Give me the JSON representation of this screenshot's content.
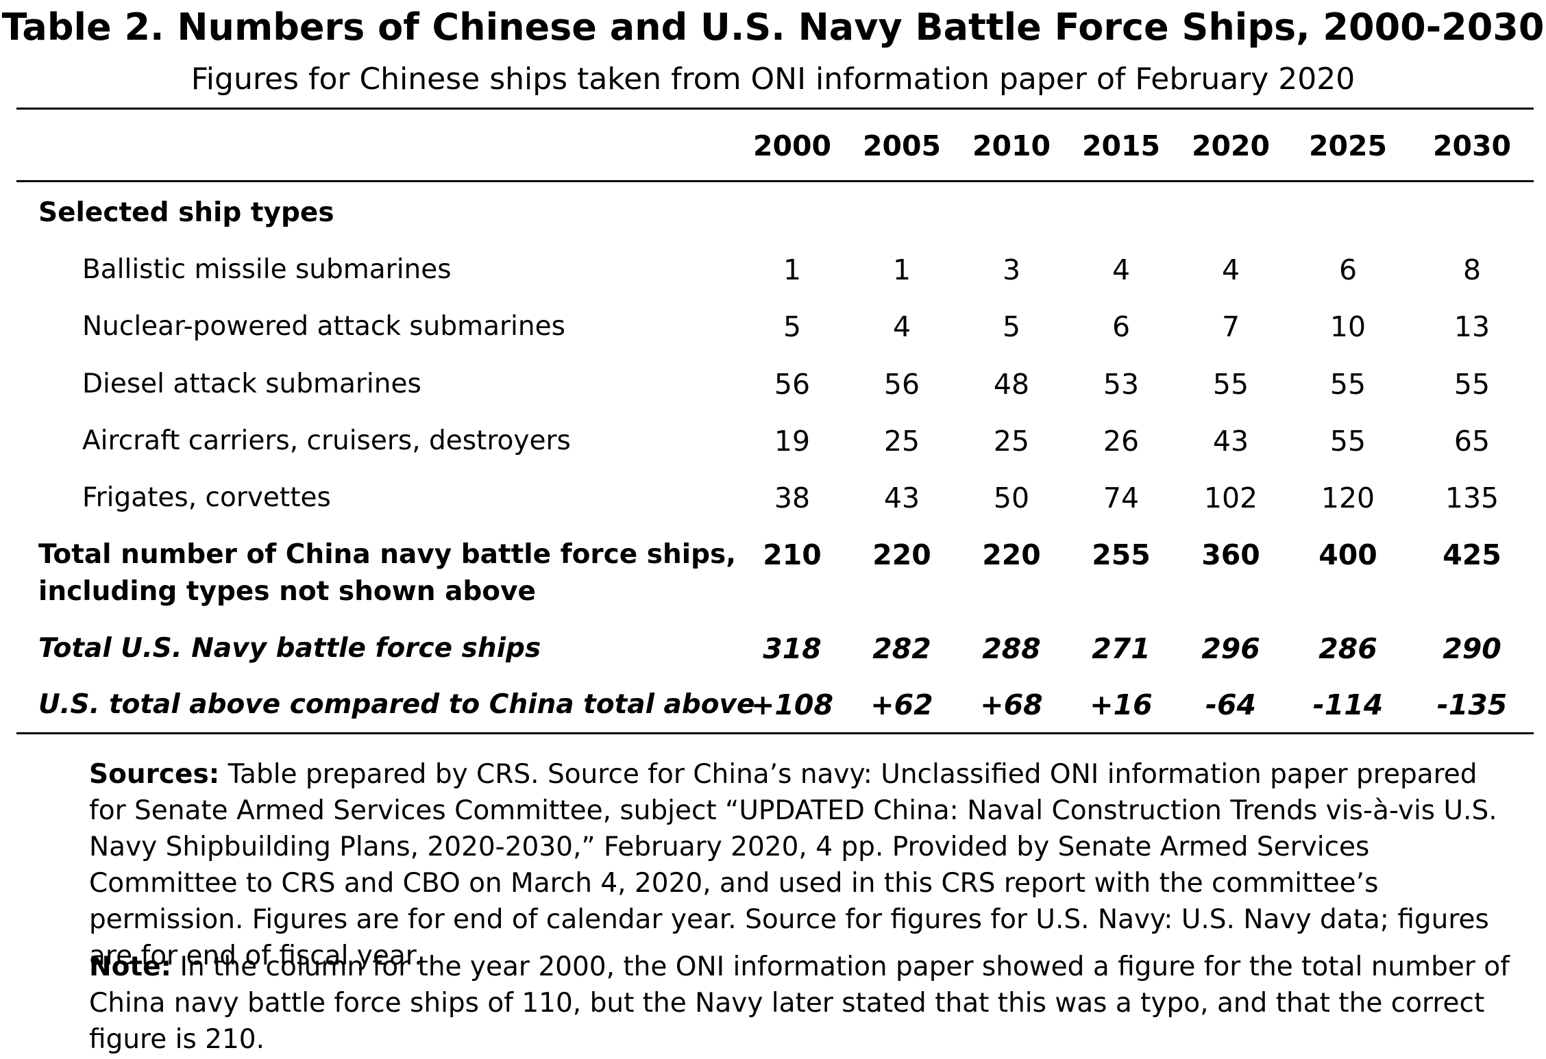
{
  "title": "Table 2. Numbers of Chinese and U.S. Navy Battle Force Ships, 2000-2030",
  "subtitle": "Figures for Chinese ships taken from ONI information paper of February 2020",
  "table": {
    "years": [
      "2000",
      "2005",
      "2010",
      "2015",
      "2020",
      "2025",
      "2030"
    ],
    "section_heading": "Selected ship types",
    "ship_types": [
      {
        "label": "Ballistic missile submarines",
        "values": [
          "1",
          "1",
          "3",
          "4",
          "4",
          "6",
          "8"
        ]
      },
      {
        "label": "Nuclear-powered attack submarines",
        "values": [
          "5",
          "4",
          "5",
          "6",
          "7",
          "10",
          "13"
        ]
      },
      {
        "label": "Diesel attack submarines",
        "values": [
          "56",
          "56",
          "48",
          "53",
          "55",
          "55",
          "55"
        ]
      },
      {
        "label": "Aircraft carriers, cruisers, destroyers",
        "values": [
          "19",
          "25",
          "25",
          "26",
          "43",
          "55",
          "65"
        ]
      },
      {
        "label": "Frigates, corvettes",
        "values": [
          "38",
          "43",
          "50",
          "74",
          "102",
          "120",
          "135"
        ]
      }
    ],
    "china_total": {
      "label_line1": "Total number of China navy battle force ships,",
      "label_line2": "including types not shown above",
      "values": [
        "210",
        "220",
        "220",
        "255",
        "360",
        "400",
        "425"
      ]
    },
    "us_total": {
      "label": "Total U.S. Navy battle force ships",
      "values": [
        "318",
        "282",
        "288",
        "271",
        "296",
        "286",
        "290"
      ]
    },
    "comparison": {
      "label": "U.S. total above compared to China total above",
      "values": [
        "+108",
        "+62",
        "+68",
        "+16",
        "-64",
        "-114",
        "-135"
      ]
    }
  },
  "notes": {
    "sources_lead": "Sources:",
    "sources_text": "Table prepared by CRS. Source for China’s navy: Unclassified ONI information paper prepared for Senate Armed Services Committee, subject “UPDATED China: Naval Construction Trends vis-à-vis U.S. Navy Shipbuilding Plans, 2020-2030,” February 2020, 4 pp. Provided by Senate Armed Services Committee to CRS and CBO on March 4, 2020, and used in this CRS report with the committee’s permission. Figures are for end of calendar year. Source for figures for U.S. Navy: U.S. Navy data; figures are for end of fiscal year.",
    "note_lead": "Note:",
    "note_text": "In the column for the year 2000, the ONI information paper showed a figure for the total number of China navy battle force ships of 110, but the Navy later stated that this was a typo, and that the correct figure is 210."
  }
}
